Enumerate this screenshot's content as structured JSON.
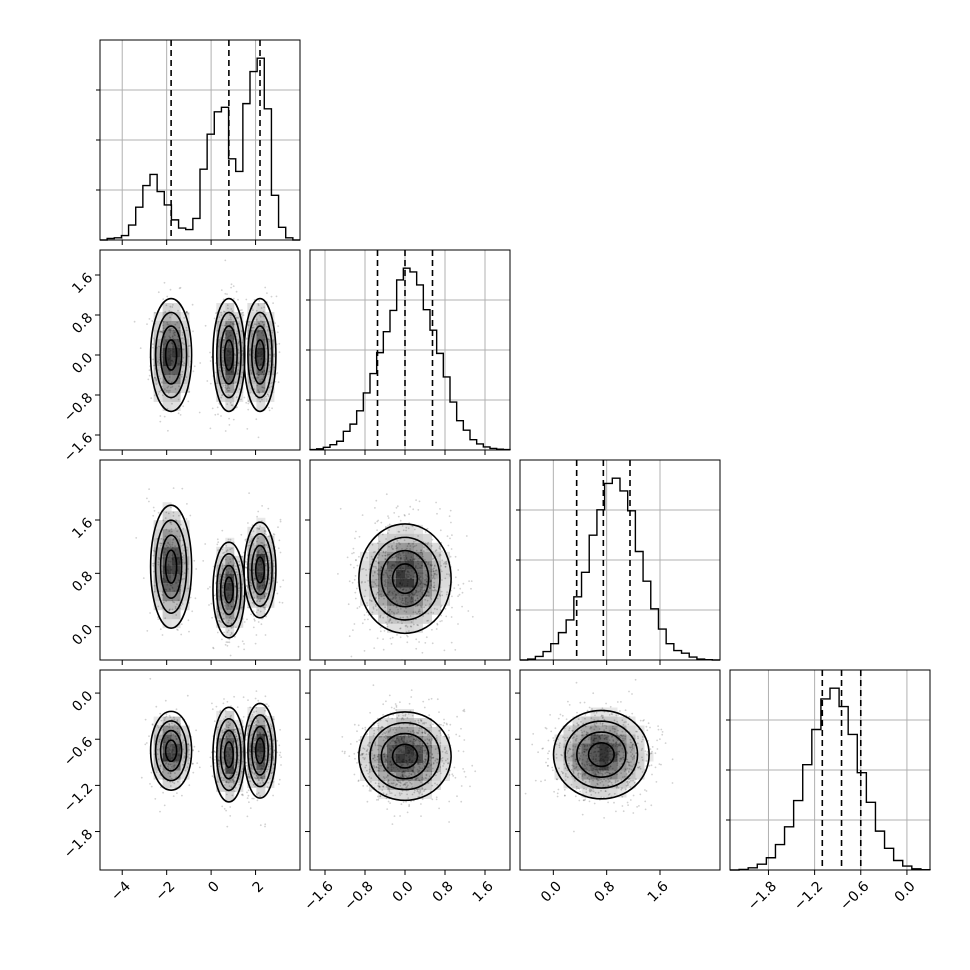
{
  "chart_data": {
    "type": "corner",
    "grid": true,
    "params": [
      {
        "range": [
          -5,
          4
        ],
        "ticks": [
          -4,
          -2,
          0,
          2
        ],
        "tick_labels": [
          "−4",
          "−2",
          "0",
          "2"
        ],
        "quantiles": [
          -1.8,
          0.8,
          2.2
        ]
      },
      {
        "range": [
          -1.9,
          2.1
        ],
        "ticks": [
          -1.6,
          -0.8,
          0.0,
          0.8,
          1.6
        ],
        "tick_labels": [
          "−1.6",
          "−0.8",
          "0.0",
          "0.8",
          "1.6"
        ],
        "quantiles": [
          -0.55,
          0.0,
          0.55
        ]
      },
      {
        "range": [
          -0.5,
          2.5
        ],
        "ticks": [
          0.0,
          0.8,
          1.6
        ],
        "tick_labels": [
          "0.0",
          "0.8",
          "1.6"
        ],
        "quantiles": [
          0.35,
          0.75,
          1.15
        ]
      },
      {
        "range": [
          -2.3,
          0.3
        ],
        "ticks": [
          -1.8,
          -1.2,
          -0.6,
          0.0
        ],
        "tick_labels": [
          "−1.8",
          "−1.2",
          "−0.6",
          "0.0"
        ],
        "quantiles": [
          -1.1,
          -0.85,
          -0.6
        ]
      }
    ],
    "histograms": [
      [
        0,
        2,
        3,
        6,
        20,
        44,
        73,
        88,
        65,
        47,
        27,
        16,
        14,
        29,
        95,
        142,
        172,
        178,
        109,
        92,
        183,
        226,
        244,
        176,
        60,
        17,
        3,
        0
      ],
      [
        1,
        3,
        7,
        14,
        23,
        49,
        68,
        103,
        150,
        201,
        256,
        311,
        367,
        447,
        478,
        468,
        434,
        369,
        315,
        254,
        192,
        126,
        77,
        52,
        27,
        16,
        8,
        4,
        2,
        1
      ],
      [
        0,
        3,
        11,
        26,
        50,
        84,
        123,
        194,
        269,
        383,
        461,
        542,
        558,
        519,
        458,
        333,
        242,
        157,
        95,
        50,
        29,
        21,
        9,
        3,
        1,
        0
      ],
      [
        0,
        2,
        7,
        19,
        40,
        83,
        141,
        227,
        344,
        459,
        559,
        594,
        534,
        443,
        318,
        221,
        127,
        71,
        31,
        13,
        4,
        1
      ]
    ],
    "pairs": [
      {
        "x": 0,
        "y": 1,
        "blobs": [
          {
            "cx": -1.8,
            "cy": 0.0,
            "sx": 0.45,
            "sy": 0.55,
            "w": 0.3
          },
          {
            "cx": 0.8,
            "cy": 0.0,
            "sx": 0.35,
            "sy": 0.55,
            "w": 0.33
          },
          {
            "cx": 2.2,
            "cy": 0.0,
            "sx": 0.35,
            "sy": 0.55,
            "w": 0.37
          }
        ]
      },
      {
        "x": 0,
        "y": 2,
        "blobs": [
          {
            "cx": -1.8,
            "cy": 0.9,
            "sx": 0.45,
            "sy": 0.45,
            "w": 0.3
          },
          {
            "cx": 0.8,
            "cy": 0.55,
            "sx": 0.35,
            "sy": 0.35,
            "w": 0.33
          },
          {
            "cx": 2.2,
            "cy": 0.85,
            "sx": 0.35,
            "sy": 0.35,
            "w": 0.37
          }
        ]
      },
      {
        "x": 0,
        "y": 3,
        "blobs": [
          {
            "cx": -1.8,
            "cy": -0.75,
            "sx": 0.45,
            "sy": 0.25,
            "w": 0.3
          },
          {
            "cx": 0.8,
            "cy": -0.8,
            "sx": 0.35,
            "sy": 0.3,
            "w": 0.33
          },
          {
            "cx": 2.2,
            "cy": -0.75,
            "sx": 0.35,
            "sy": 0.3,
            "w": 0.37
          }
        ]
      },
      {
        "x": 1,
        "y": 2,
        "blobs": [
          {
            "cx": 0.0,
            "cy": 0.72,
            "sx": 0.45,
            "sy": 0.4,
            "w": 1
          }
        ]
      },
      {
        "x": 1,
        "y": 3,
        "blobs": [
          {
            "cx": 0.0,
            "cy": -0.82,
            "sx": 0.45,
            "sy": 0.28,
            "w": 1
          }
        ]
      },
      {
        "x": 2,
        "y": 3,
        "blobs": [
          {
            "cx": 0.72,
            "cy": -0.8,
            "sx": 0.35,
            "sy": 0.28,
            "w": 1
          }
        ]
      }
    ]
  }
}
